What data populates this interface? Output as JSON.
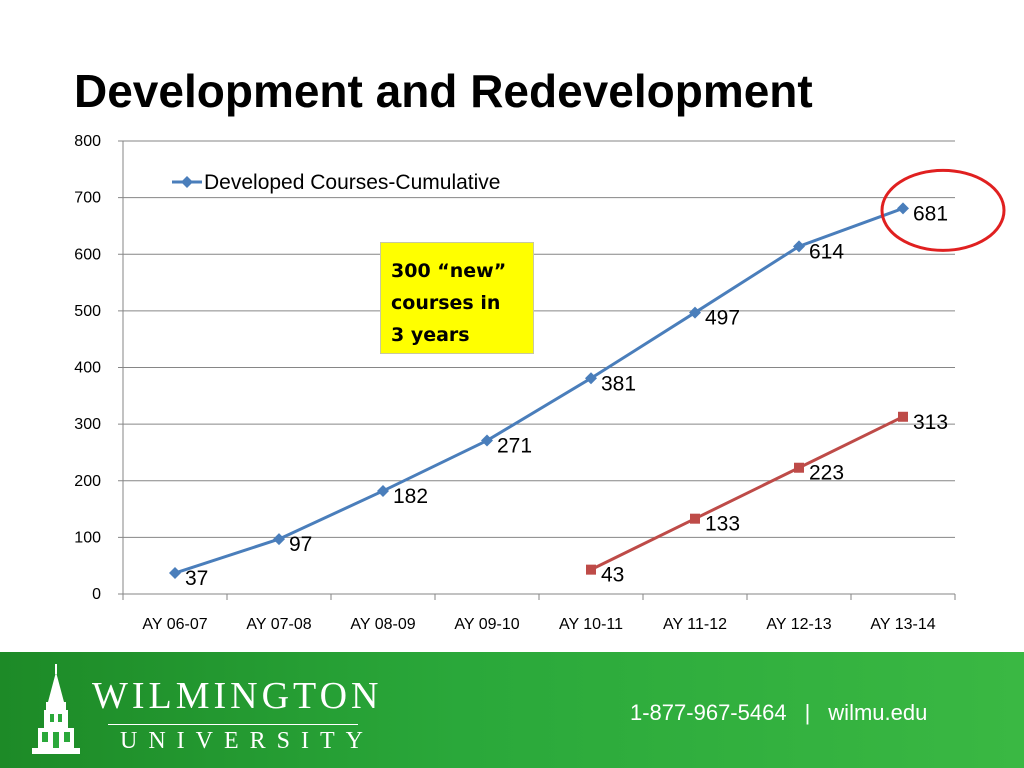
{
  "slide": {
    "title": "Development and Redevelopment",
    "callout_lines": [
      "300 “new”",
      "courses in",
      "3 years"
    ]
  },
  "footer": {
    "logo_name": "WILMINGTON",
    "logo_sub": "UNIVERSITY",
    "phone": "1-877-967-5464",
    "separator": "|",
    "website": "wilmu.edu"
  },
  "colors": {
    "series1": "#4a7ebb",
    "series2": "#be4b48",
    "highlight_circle": "#e02020",
    "callout_bg": "#ffff00",
    "footer_green": "#2aa83a"
  },
  "chart_data": {
    "type": "line",
    "categories": [
      "AY 06-07",
      "AY 07-08",
      "AY 08-09",
      "AY 09-10",
      "AY 10-11",
      "AY 11-12",
      "AY 12-13",
      "AY 13-14"
    ],
    "series": [
      {
        "name": "Developed Courses-Cumulative",
        "values": [
          37,
          97,
          182,
          271,
          381,
          497,
          614,
          681
        ],
        "labels": [
          "37",
          "97",
          "182",
          "271",
          "381",
          "497",
          "614",
          "681"
        ],
        "marker": "diamond",
        "color": "#4a7ebb"
      },
      {
        "values": [
          null,
          null,
          null,
          null,
          43,
          133,
          223,
          313
        ],
        "labels": [
          null,
          null,
          null,
          null,
          "43",
          "133",
          "223",
          "313"
        ],
        "marker": "square",
        "color": "#be4b48"
      }
    ],
    "ylim": [
      0,
      800
    ],
    "yticks": [
      0,
      100,
      200,
      300,
      400,
      500,
      600,
      700,
      800
    ],
    "grid": true,
    "legend_position": "top-left",
    "highlight": {
      "series": 0,
      "index": 7
    }
  }
}
